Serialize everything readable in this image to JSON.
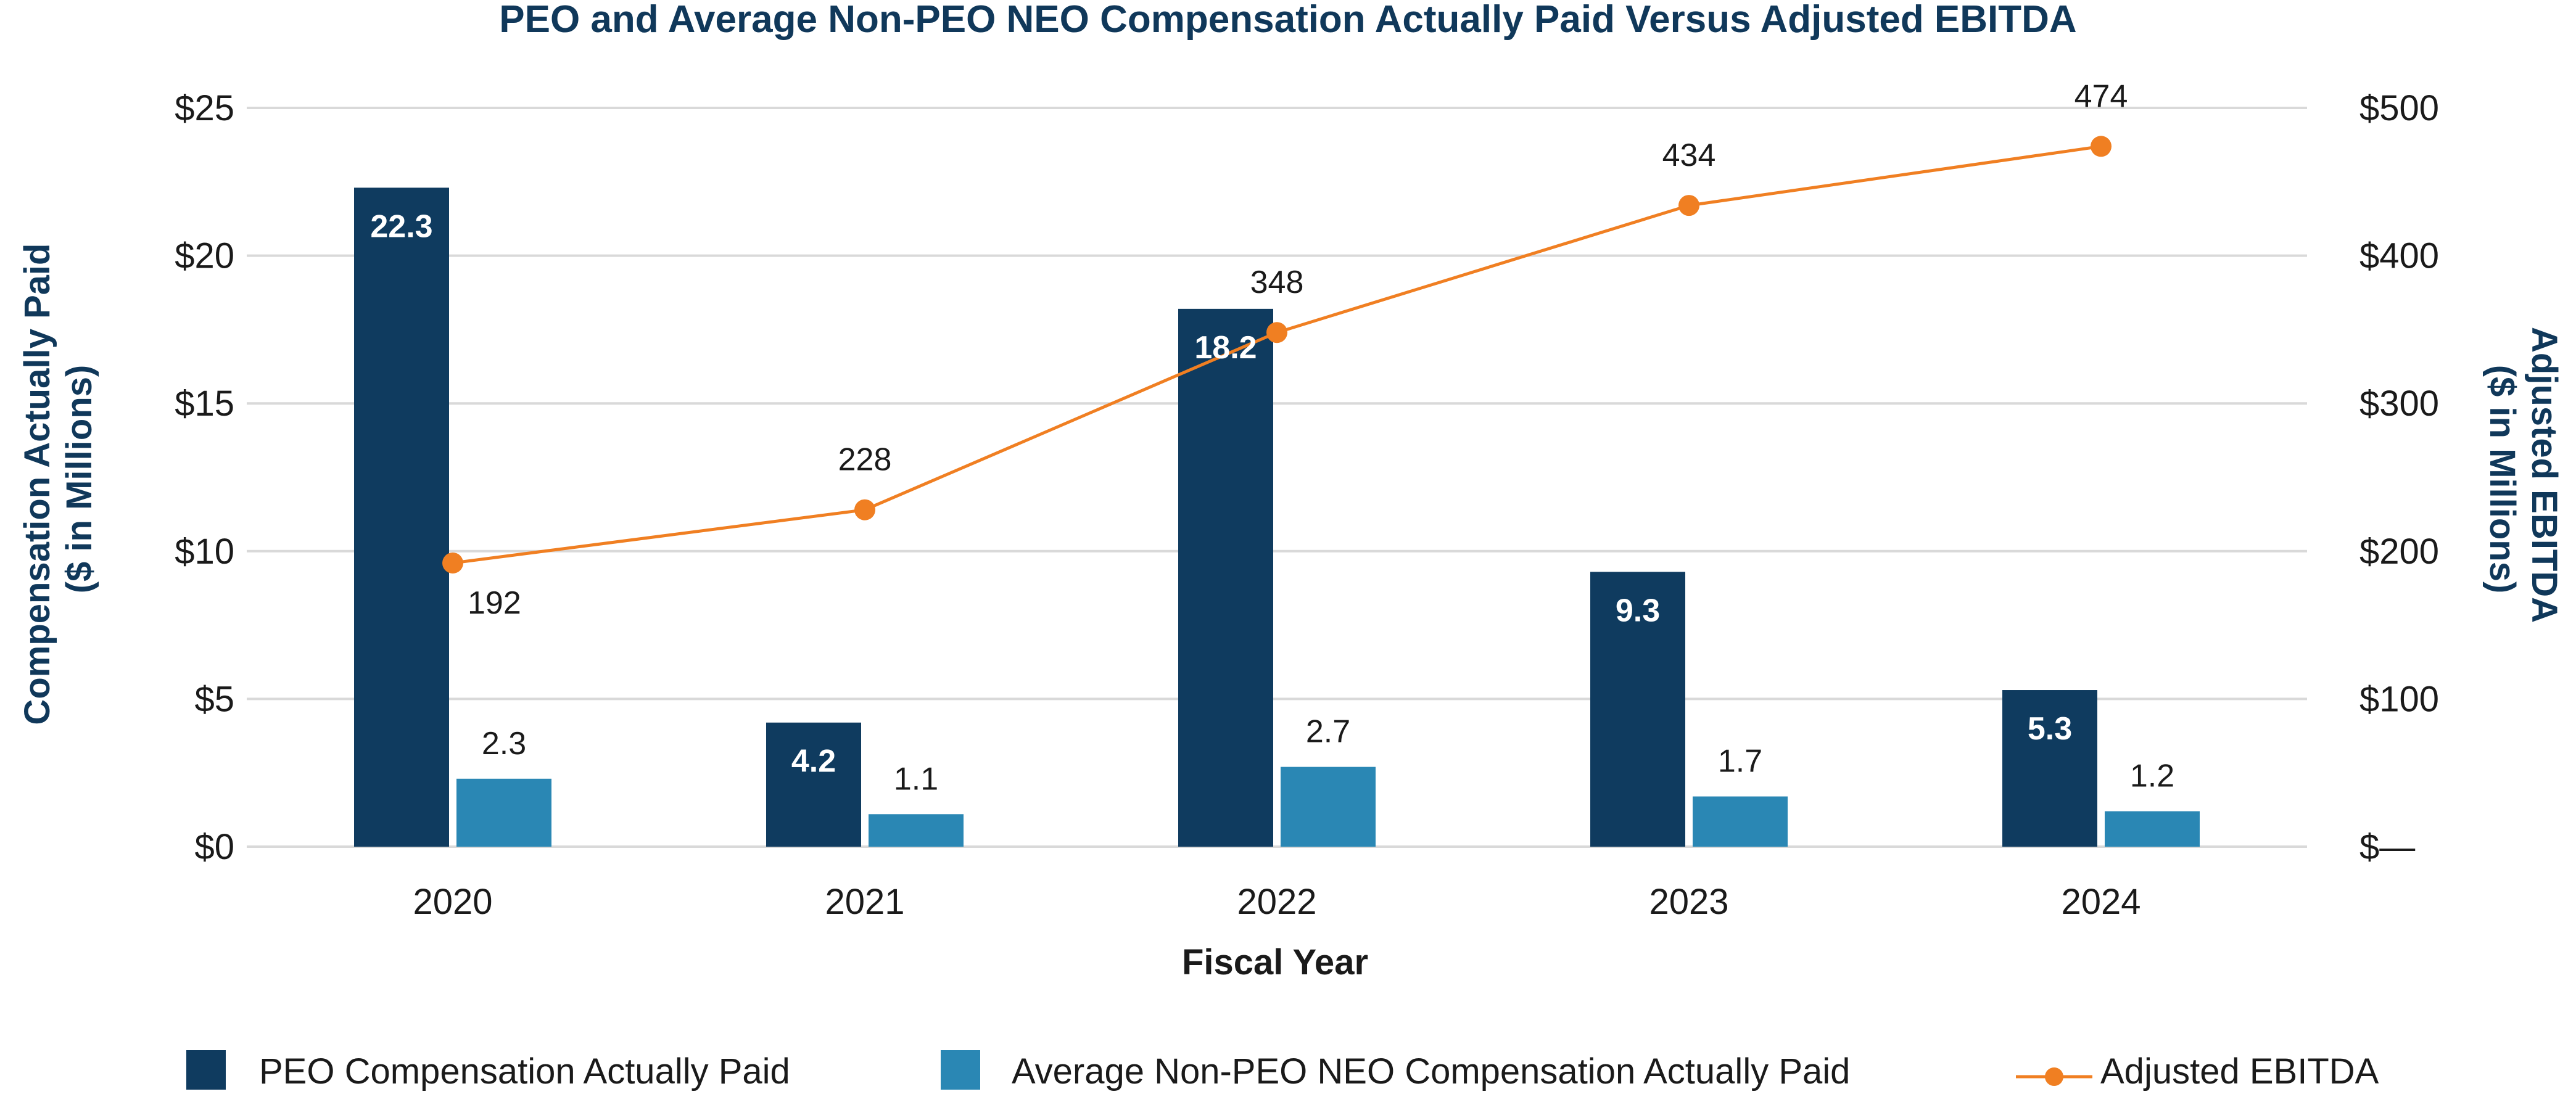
{
  "chart_data": {
    "type": "bar",
    "title": "PEO and Average Non-PEO NEO Compensation Actually Paid Versus Adjusted EBITDA",
    "xlabel": "Fiscal Year",
    "ylabel_left": [
      "Compensation Actually Paid",
      "($ in Millions)"
    ],
    "ylabel_right": [
      "Adjusted EBITDA",
      "($ in Millions)"
    ],
    "categories": [
      "2020",
      "2021",
      "2022",
      "2023",
      "2024"
    ],
    "ylim_left": [
      0,
      25
    ],
    "ylim_right": [
      0,
      500
    ],
    "left_ticks": [
      {
        "value": 0,
        "label": "$0"
      },
      {
        "value": 5,
        "label": "$5"
      },
      {
        "value": 10,
        "label": "$10"
      },
      {
        "value": 15,
        "label": "$15"
      },
      {
        "value": 20,
        "label": "$20"
      },
      {
        "value": 25,
        "label": "$25"
      }
    ],
    "right_ticks": [
      {
        "value": 0,
        "label": "$—"
      },
      {
        "value": 100,
        "label": "$100"
      },
      {
        "value": 200,
        "label": "$200"
      },
      {
        "value": 300,
        "label": "$300"
      },
      {
        "value": 400,
        "label": "$400"
      },
      {
        "value": 500,
        "label": "$500"
      }
    ],
    "grid": true,
    "legend_position": "bottom",
    "series": [
      {
        "name": "PEO Compensation Actually Paid",
        "type": "bar",
        "axis": "left",
        "color": "#0f3b5f",
        "values": [
          22.3,
          4.2,
          18.2,
          9.3,
          5.3
        ],
        "labels": [
          "22.3",
          "4.2",
          "18.2",
          "9.3",
          "5.3"
        ]
      },
      {
        "name": "Average Non-PEO NEO Compensation Actually Paid",
        "type": "bar",
        "axis": "left",
        "color": "#2a87b4",
        "values": [
          2.3,
          1.1,
          2.7,
          1.7,
          1.2
        ],
        "labels": [
          "2.3",
          "1.1",
          "2.7",
          "1.7",
          "1.2"
        ]
      },
      {
        "name": "Adjusted EBITDA",
        "type": "line",
        "axis": "right",
        "color": "#f07f22",
        "values": [
          192,
          228,
          348,
          434,
          474
        ],
        "labels": [
          "192",
          "228",
          "348",
          "434",
          "474"
        ]
      }
    ]
  }
}
